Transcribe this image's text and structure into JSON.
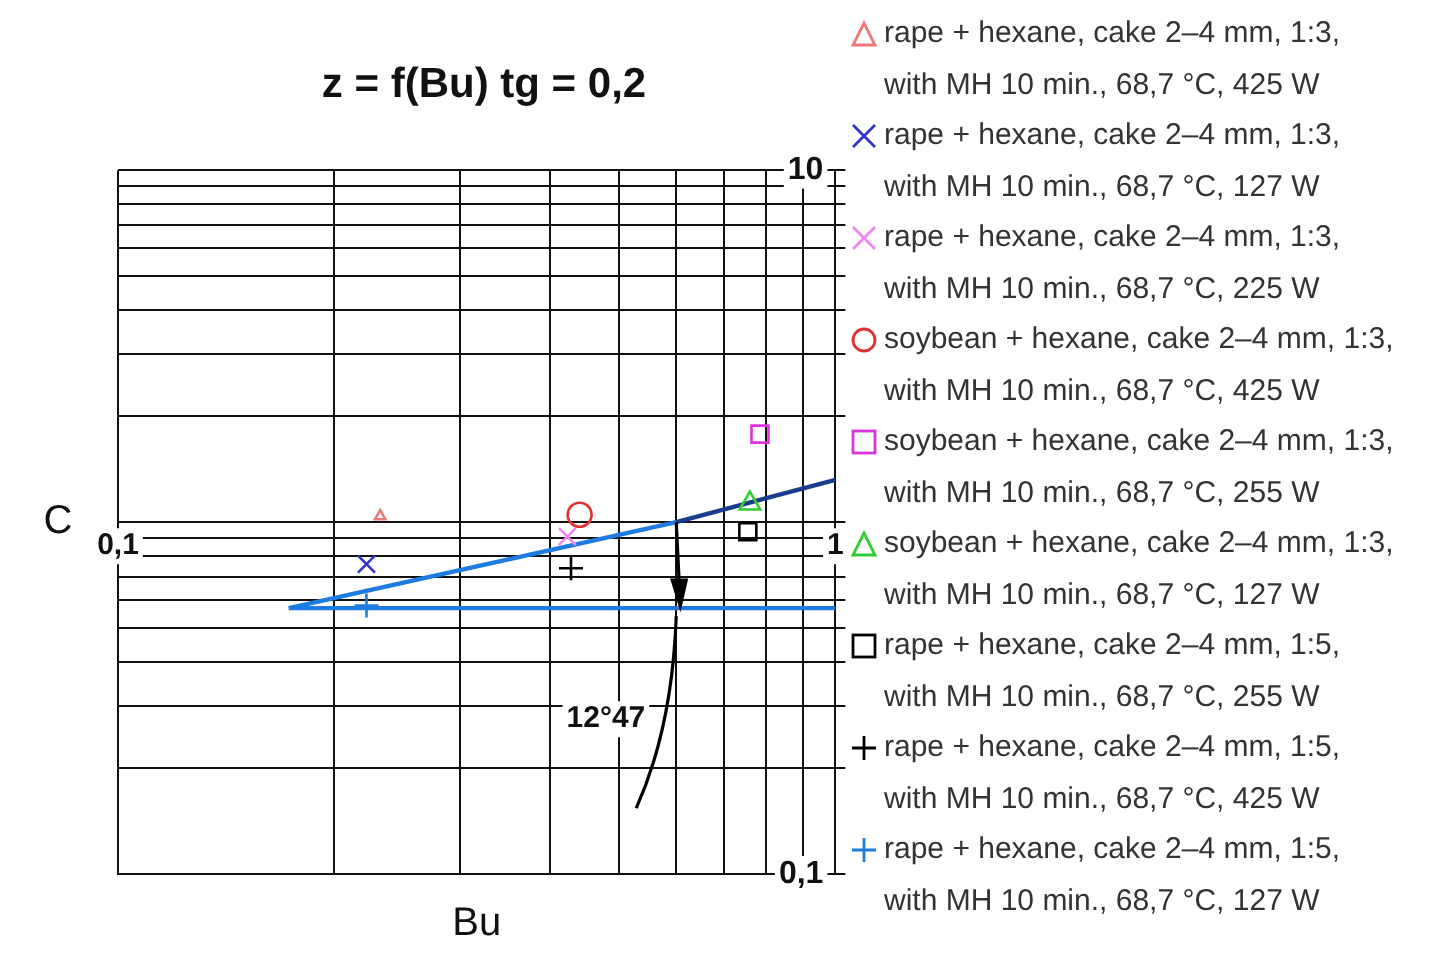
{
  "chart_data": {
    "type": "scatter",
    "title": "z = f(Bu) tg = 0,2",
    "xlabel": "Bu",
    "ylabel": "C",
    "log": "xy",
    "grid": true,
    "legend": "right",
    "xlim": [
      0.1,
      1
    ],
    "xticks": [
      {
        "value": 0.1,
        "label": "0,1"
      },
      {
        "value": 0.2,
        "label": null
      },
      {
        "value": 0.3,
        "label": null
      },
      {
        "value": 0.4,
        "label": null
      },
      {
        "value": 0.5,
        "label": null
      },
      {
        "value": 0.6,
        "label": null
      },
      {
        "value": 0.7,
        "label": null
      },
      {
        "value": 0.8,
        "label": null
      },
      {
        "value": 0.9,
        "label": null
      },
      {
        "value": 1,
        "label": "1"
      }
    ],
    "ylim": [
      0.1,
      10
    ],
    "yticks": [
      {
        "value": 0.1,
        "label": "0,1"
      },
      {
        "value": 0.2,
        "label": null
      },
      {
        "value": 0.3,
        "label": null
      },
      {
        "value": 0.4,
        "label": null
      },
      {
        "value": 0.5,
        "label": null
      },
      {
        "value": 0.6,
        "label": null
      },
      {
        "value": 0.7,
        "label": null
      },
      {
        "value": 0.8,
        "label": null
      },
      {
        "value": 0.9,
        "label": null
      },
      {
        "value": 1,
        "label": null
      },
      {
        "value": 2,
        "label": null
      },
      {
        "value": 3,
        "label": null
      },
      {
        "value": 4,
        "label": null
      },
      {
        "value": 5,
        "label": null
      },
      {
        "value": 6,
        "label": null
      },
      {
        "value": 7,
        "label": null
      },
      {
        "value": 8,
        "label": null
      },
      {
        "value": 9,
        "label": null
      },
      {
        "value": 10,
        "label": "10"
      }
    ],
    "annotations": [
      "12°47"
    ],
    "series": [
      {
        "name": "rape + hexane, cake 2–4 mm, 1:3, with MH 10 min., 68,7 °C, 425 W",
        "color": "#ee7777",
        "marker": "triangle",
        "x": [
          0.232
        ],
        "values": [
          1.04
        ]
      },
      {
        "name": "rape + hexane, cake 2–4 mm, 1:3, with MH 10 min., 68,7 °C, 127 W",
        "color": "#3333cc",
        "marker": "x",
        "x": [
          0.222
        ],
        "values": [
          0.76
        ]
      },
      {
        "name": "rape + hexane, cake 2–4 mm, 1:3, with MH 10 min., 68,7 °C, 225 W",
        "color": "#ee88ee",
        "marker": "x",
        "x": [
          0.423
        ],
        "values": [
          0.91
        ]
      },
      {
        "name": "soybean + hexane, cake 2–4 mm, 1:3, with MH 10 min., 68,7 °C, 425 W",
        "color": "#e03030",
        "marker": "circle",
        "x": [
          0.44
        ],
        "values": [
          1.05
        ]
      },
      {
        "name": "soybean + hexane, cake 2–4 mm, 1:3, with MH 10 min., 68,7 °C, 255 W",
        "color": "#dd33dd",
        "marker": "square",
        "x": [
          0.785
        ],
        "values": [
          1.78
        ]
      },
      {
        "name": "soybean + hexane, cake 2–4 mm, 1:3, with MH 10 min., 68,7 °C, 127 W",
        "color": "#33cc33",
        "marker": "triangle",
        "x": [
          0.76
        ],
        "values": [
          1.13
        ]
      },
      {
        "name": "rape + hexane, cake 2–4 mm, 1:5, with MH 10 min., 68,7 °C, 255 W",
        "color": "#000000",
        "marker": "square",
        "x": [
          0.755
        ],
        "values": [
          0.94
        ]
      },
      {
        "name": "rape + hexane, cake 2–4 mm, 1:5, with MH 10 min., 68,7 °C, 425 W",
        "color": "#000000",
        "marker": "cross",
        "x": [
          0.428
        ],
        "values": [
          0.74
        ]
      },
      {
        "name": "rape + hexane, cake 2–4 mm, 1:5, with MH 10 min., 68,7 °C, 127 W",
        "color": "#1e7be0",
        "marker": "cross",
        "x": [
          0.222
        ],
        "values": [
          0.58
        ]
      },
      {
        "type": "line",
        "color": "#1e7be0",
        "marker": "none",
        "x": [
          0.173,
          0.6
        ],
        "values": [
          0.57,
          1.0
        ]
      },
      {
        "type": "line",
        "color": "#1a3c8c",
        "marker": "none",
        "x": [
          0.6,
          1
        ],
        "values": [
          1.0,
          1.32
        ]
      },
      {
        "type": "line",
        "color": "#1e7be0",
        "marker": "none",
        "x": [
          0.173,
          1
        ],
        "values": [
          0.57,
          0.57
        ]
      }
    ]
  }
}
